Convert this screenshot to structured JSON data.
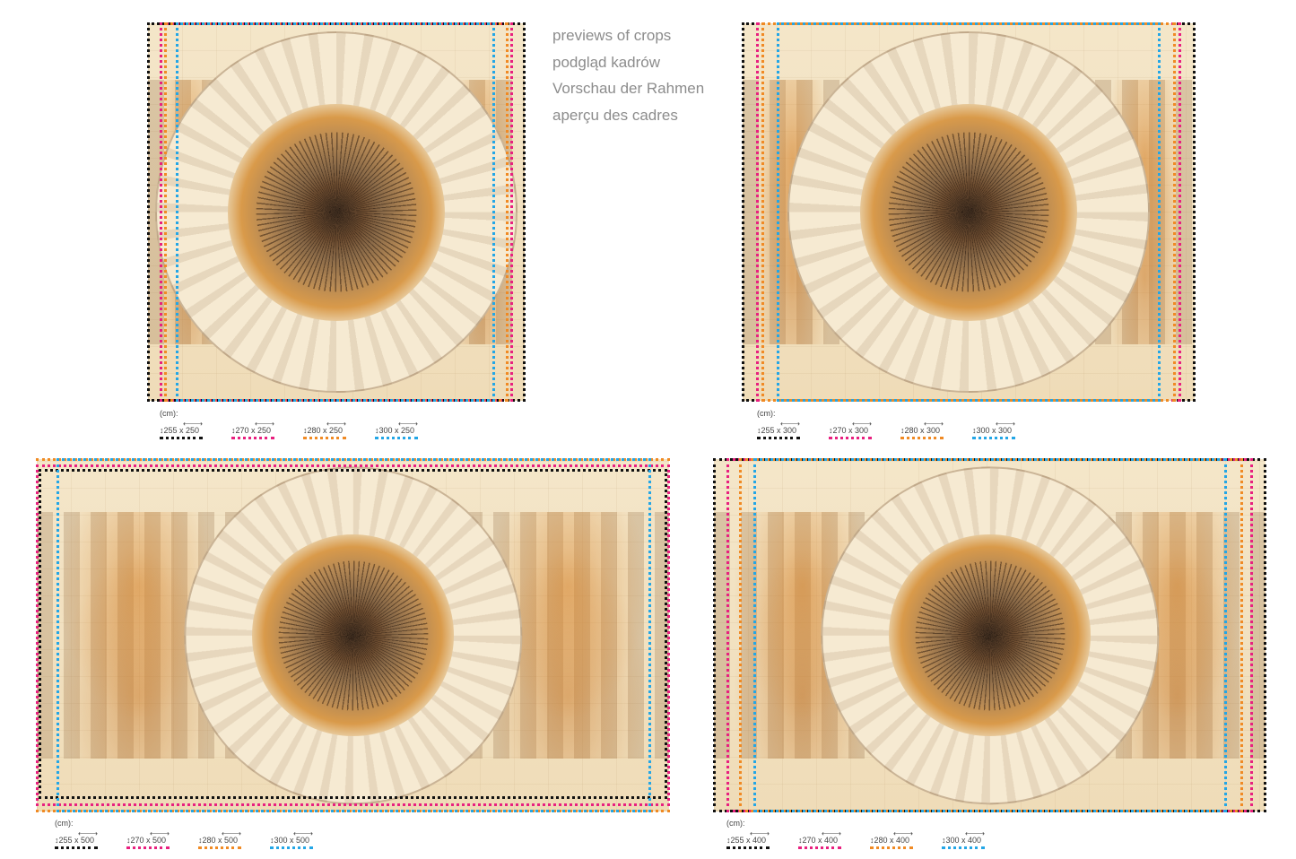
{
  "heading": {
    "lines": [
      "previews of crops",
      "podgląd kadrów",
      "Vorschau der Rahmen",
      "aperçu des cadres"
    ]
  },
  "colors": {
    "255": "#111111",
    "270": "#e8207f",
    "280": "#f08a24",
    "300": "#23a6e6"
  },
  "unit_label": "(cm):",
  "panels": [
    {
      "name": "250",
      "sizes": [
        "255 x 250",
        "270 x 250",
        "280 x 250",
        "300 x 250"
      ]
    },
    {
      "name": "300",
      "sizes": [
        "255 x 300",
        "270 x 300",
        "280 x 300",
        "300 x 300"
      ]
    },
    {
      "name": "500",
      "sizes": [
        "255 x 500",
        "270 x 500",
        "280 x 500",
        "300 x 500"
      ]
    },
    {
      "name": "400",
      "sizes": [
        "255 x 400",
        "270 x 400",
        "280 x 400",
        "300 x 400"
      ]
    }
  ]
}
